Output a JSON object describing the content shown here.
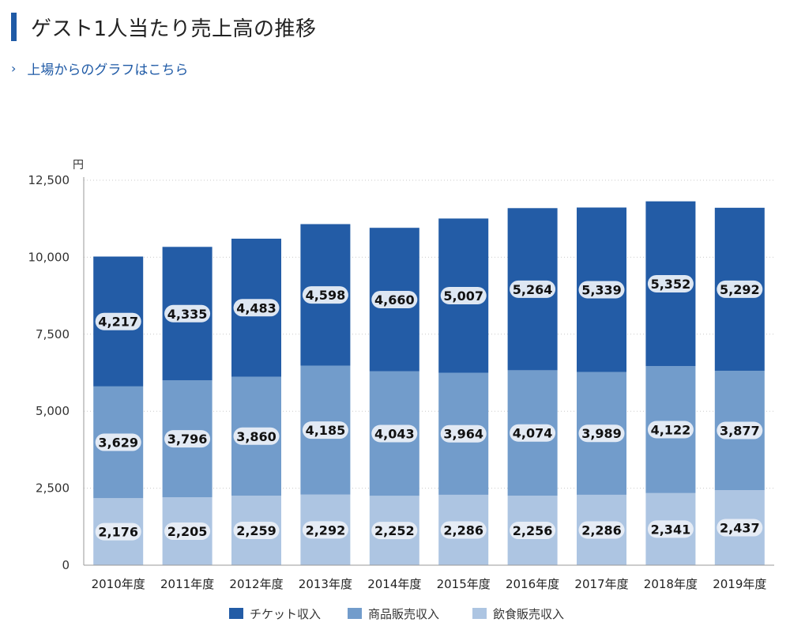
{
  "page": {
    "title": "ゲスト1人当たり売上高の推移",
    "link_label": "上場からのグラフはこちら",
    "link_chevron": "›"
  },
  "colors": {
    "accent": "#1f5aa6",
    "ticket": "#235ca6",
    "merch": "#729ccb",
    "food": "#adc5e2",
    "label_bg": "#e9eef5"
  },
  "chart_data": {
    "type": "bar",
    "stacked": true,
    "unit": "円",
    "categories": [
      "2010年度",
      "2011年度",
      "2012年度",
      "2013年度",
      "2014年度",
      "2015年度",
      "2016年度",
      "2017年度",
      "2018年度",
      "2019年度"
    ],
    "series": [
      {
        "name": "飲食販売収入",
        "values": [
          2176,
          2205,
          2259,
          2292,
          2252,
          2286,
          2256,
          2286,
          2341,
          2437
        ],
        "labels": [
          "2,176",
          "2,205",
          "2,259",
          "2,292",
          "2,252",
          "2,286",
          "2,256",
          "2,286",
          "2,341",
          "2,437"
        ]
      },
      {
        "name": "商品販売収入",
        "values": [
          3629,
          3796,
          3860,
          4185,
          4043,
          3964,
          4074,
          3989,
          4122,
          3877
        ],
        "labels": [
          "3,629",
          "3,796",
          "3,860",
          "4,185",
          "4,043",
          "3,964",
          "4,074",
          "3,989",
          "4,122",
          "3,877"
        ]
      },
      {
        "name": "チケット収入",
        "values": [
          4217,
          4335,
          4483,
          4598,
          4660,
          5007,
          5264,
          5339,
          5352,
          5292
        ],
        "labels": [
          "4,217",
          "4,335",
          "4,483",
          "4,598",
          "4,660",
          "5,007",
          "5,264",
          "5,339",
          "5,352",
          "5,292"
        ]
      }
    ],
    "legend_order": [
      "チケット収入",
      "商品販売収入",
      "飲食販売収入"
    ],
    "yticks": [
      0,
      2500,
      5000,
      7500,
      10000,
      12500
    ],
    "ytick_labels": [
      "0",
      "2,500",
      "5,000",
      "7,500",
      "10,000",
      "12,500"
    ],
    "ylim": [
      0,
      12500
    ],
    "grid": true,
    "legend_position": "bottom"
  }
}
